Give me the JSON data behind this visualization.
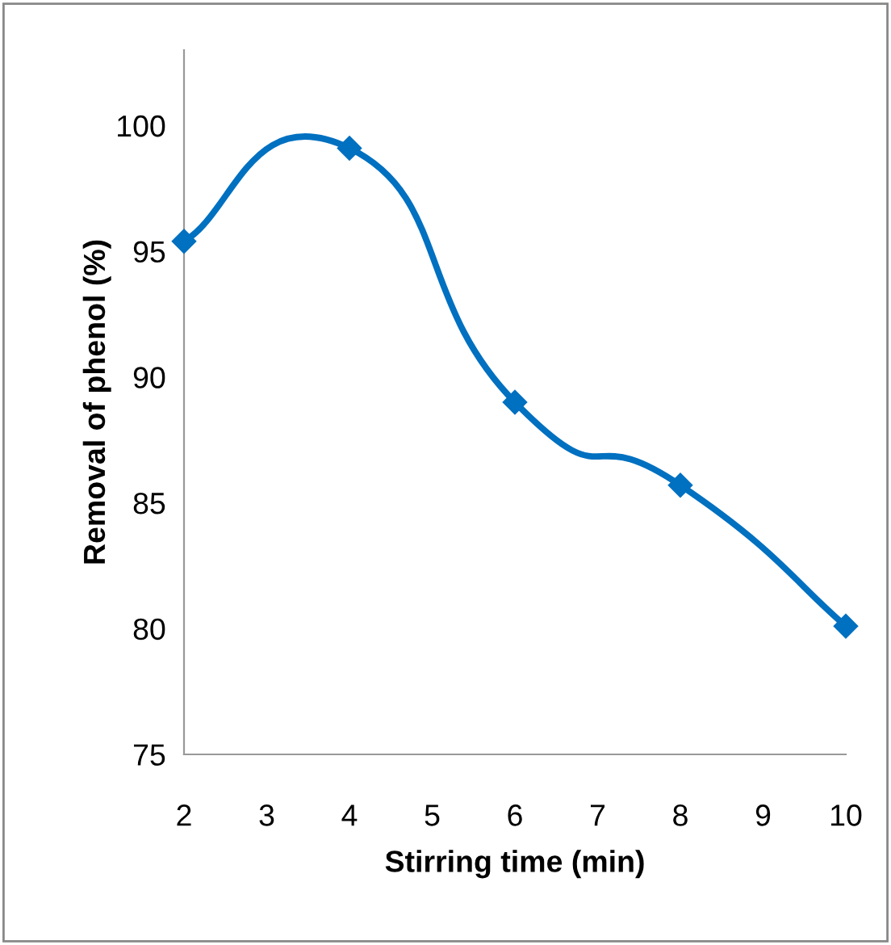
{
  "chart_data": {
    "type": "line",
    "xlabel": "Stirring time (min)",
    "ylabel": "Removal of phenol (%)",
    "x": [
      2,
      4,
      6,
      8,
      10
    ],
    "series": [
      {
        "color": "#0070c0",
        "values": [
          95.4,
          99.1,
          89.0,
          85.7,
          80.1
        ]
      }
    ],
    "xlim": [
      2,
      10
    ],
    "xticks": [
      2,
      3,
      4,
      5,
      6,
      7,
      8,
      9,
      10
    ],
    "ylim": [
      75,
      103
    ],
    "yticks": [
      75,
      80,
      85,
      90,
      95,
      100
    ],
    "marker": "diamond",
    "line_style": "solid",
    "grid": false,
    "legend": false
  }
}
